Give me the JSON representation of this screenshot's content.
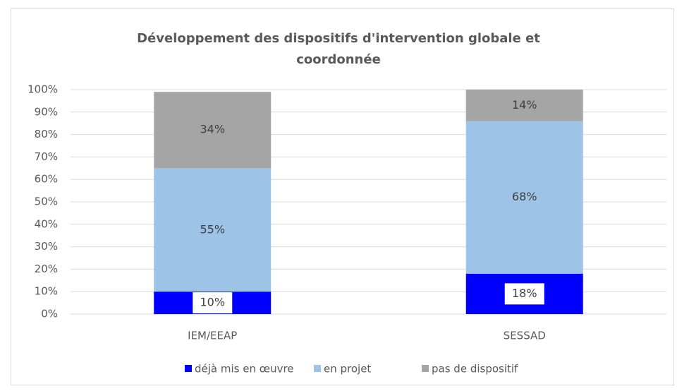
{
  "chart_data": {
    "type": "stacked_bar",
    "title": "Développement des dispositifs  d'intervention globale et coordonnée",
    "categories": [
      "IEM/EEAP",
      "SESSAD"
    ],
    "series": [
      {
        "name": "déjà mis en œuvre",
        "color": "#0000ff",
        "values": [
          10,
          18
        ],
        "value_labels": [
          "10%",
          "18%"
        ]
      },
      {
        "name": "en projet",
        "color": "#9dc3e6",
        "values": [
          55,
          68
        ],
        "value_labels": [
          "55%",
          "68%"
        ]
      },
      {
        "name": "pas de dispositif",
        "color": "#a5a5a5",
        "values": [
          34,
          14
        ],
        "value_labels": [
          "34%",
          "14%"
        ]
      }
    ],
    "ylim": [
      0,
      100
    ],
    "yticks": [
      {
        "value": 0,
        "label": "0%"
      },
      {
        "value": 10,
        "label": "10%"
      },
      {
        "value": 20,
        "label": "20%"
      },
      {
        "value": 30,
        "label": "30%"
      },
      {
        "value": 40,
        "label": "40%"
      },
      {
        "value": 50,
        "label": "50%"
      },
      {
        "value": 60,
        "label": "60%"
      },
      {
        "value": 70,
        "label": "70%"
      },
      {
        "value": 80,
        "label": "80%"
      },
      {
        "value": 90,
        "label": "90%"
      },
      {
        "value": 100,
        "label": "100%"
      }
    ],
    "grid": true,
    "legend": "bottom"
  }
}
